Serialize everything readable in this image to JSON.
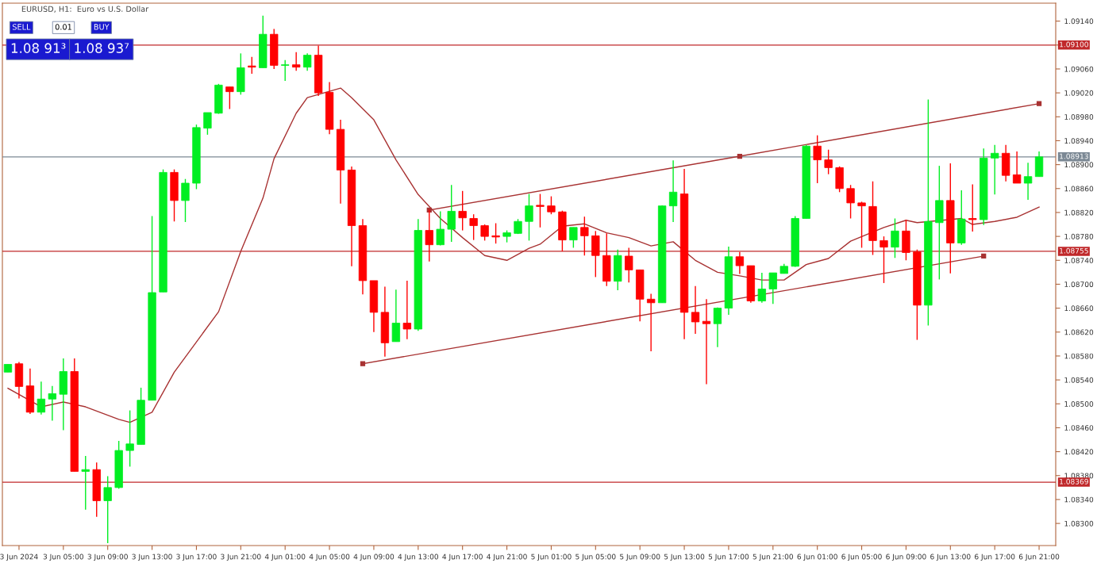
{
  "chart_data": {
    "type": "candlestick",
    "title": "EURUSD, H1:  Euro vs U.S. Dollar",
    "categories": [
      null,
      "3 Jun 2024",
      null,
      null,
      null,
      "3 Jun 05:00",
      null,
      null,
      null,
      "3 Jun 09:00",
      null,
      null,
      null,
      "3 Jun 13:00",
      null,
      null,
      null,
      "3 Jun 17:00",
      null,
      null,
      null,
      "3 Jun 21:00",
      null,
      null,
      null,
      "4 Jun 01:00",
      null,
      null,
      null,
      "4 Jun 05:00",
      null,
      null,
      null,
      "4 Jun 09:00",
      null,
      null,
      null,
      "4 Jun 13:00",
      null,
      null,
      null,
      "4 Jun 17:00",
      null,
      null,
      null,
      "4 Jun 21:00",
      null,
      null,
      null,
      "5 Jun 01:00",
      null,
      null,
      null,
      "5 Jun 05:00",
      null,
      null,
      null,
      "5 Jun 09:00",
      null,
      null,
      null,
      "5 Jun 13:00",
      null,
      null,
      null,
      "5 Jun 17:00",
      null,
      null,
      null,
      "5 Jun 21:00",
      null,
      null,
      null,
      "6 Jun 01:00",
      null,
      null,
      null,
      "6 Jun 05:00",
      null,
      null,
      null,
      "6 Jun 09:00",
      null,
      null,
      null,
      "6 Jun 13:00",
      null,
      null,
      null,
      "6 Jun 17:00",
      null,
      null,
      null,
      "6 Jun 21:00"
    ],
    "ohlc": [
      [
        1.08553,
        1.08566,
        1.08553,
        1.08566
      ],
      [
        1.08567,
        1.0857,
        1.08509,
        1.08529
      ],
      [
        1.0853,
        1.08559,
        1.08483,
        1.08486
      ],
      [
        1.08486,
        1.08537,
        1.08482,
        1.08508
      ],
      [
        1.08508,
        1.0853,
        1.08472,
        1.08517
      ],
      [
        1.08516,
        1.08576,
        1.08456,
        1.08554
      ],
      [
        1.08554,
        1.08576,
        1.08387,
        1.08387
      ],
      [
        1.08387,
        1.08413,
        1.08323,
        1.0839
      ],
      [
        1.0839,
        1.08402,
        1.08311,
        1.08338
      ],
      [
        1.08338,
        1.08379,
        1.08267,
        1.0836
      ],
      [
        1.0836,
        1.08438,
        1.08358,
        1.08422
      ],
      [
        1.08422,
        1.08489,
        1.08395,
        1.08433
      ],
      [
        1.08432,
        1.08527,
        1.08432,
        1.08506
      ],
      [
        1.08506,
        1.08814,
        1.08506,
        1.08686
      ],
      [
        1.08687,
        1.08892,
        1.08687,
        1.08887
      ],
      [
        1.08887,
        1.08892,
        1.08805,
        1.0884
      ],
      [
        1.0884,
        1.08876,
        1.08804,
        1.08869
      ],
      [
        1.08869,
        1.08967,
        1.08859,
        1.08962
      ],
      [
        1.08961,
        1.08987,
        1.0895,
        1.08987
      ],
      [
        1.08986,
        1.09035,
        1.08985,
        1.09033
      ],
      [
        1.0903,
        1.0903,
        1.08993,
        1.09022
      ],
      [
        1.09022,
        1.09086,
        1.09017,
        1.09062
      ],
      [
        1.09065,
        1.0908,
        1.09052,
        1.09063
      ],
      [
        1.09062,
        1.09149,
        1.09062,
        1.09118
      ],
      [
        1.09118,
        1.09127,
        1.0906,
        1.09066
      ],
      [
        1.09066,
        1.09075,
        1.0904,
        1.09067
      ],
      [
        1.09067,
        1.09088,
        1.09057,
        1.09063
      ],
      [
        1.09063,
        1.09086,
        1.09057,
        1.09083
      ],
      [
        1.09083,
        1.09099,
        1.09015,
        1.0902
      ],
      [
        1.09021,
        1.09038,
        1.08951,
        1.08959
      ],
      [
        1.08959,
        1.08975,
        1.08835,
        1.08891
      ],
      [
        1.08891,
        1.08897,
        1.0873,
        1.08798
      ],
      [
        1.08798,
        1.08809,
        1.08683,
        1.08706
      ],
      [
        1.08706,
        1.08706,
        1.0862,
        1.08653
      ],
      [
        1.08653,
        1.08696,
        1.08579,
        1.08602
      ],
      [
        1.08604,
        1.08691,
        1.08604,
        1.08635
      ],
      [
        1.08635,
        1.08706,
        1.08608,
        1.08625
      ],
      [
        1.08625,
        1.08809,
        1.08622,
        1.0879
      ],
      [
        1.0879,
        1.08825,
        1.08738,
        1.08766
      ],
      [
        1.08766,
        1.08822,
        1.08765,
        1.08792
      ],
      [
        1.08792,
        1.08866,
        1.08771,
        1.08822
      ],
      [
        1.08822,
        1.08856,
        1.0879,
        1.08811
      ],
      [
        1.0881,
        1.08817,
        1.08774,
        1.08798
      ],
      [
        1.08798,
        1.088,
        1.08773,
        1.0878
      ],
      [
        1.08781,
        1.08802,
        1.08768,
        1.08779
      ],
      [
        1.0878,
        1.0879,
        1.0877,
        1.08786
      ],
      [
        1.08785,
        1.08809,
        1.08784,
        1.08805
      ],
      [
        1.08805,
        1.08851,
        1.08773,
        1.08831
      ],
      [
        1.08832,
        1.08851,
        1.08795,
        1.0883
      ],
      [
        1.08831,
        1.08847,
        1.08817,
        1.08821
      ],
      [
        1.08821,
        1.08823,
        1.08755,
        1.08774
      ],
      [
        1.08774,
        1.08795,
        1.08761,
        1.08795
      ],
      [
        1.08795,
        1.08813,
        1.08748,
        1.08781
      ],
      [
        1.08781,
        1.08789,
        1.08712,
        1.08748
      ],
      [
        1.08748,
        1.08785,
        1.08697,
        1.08705
      ],
      [
        1.08705,
        1.08758,
        1.0869,
        1.08748
      ],
      [
        1.08747,
        1.08761,
        1.08703,
        1.08724
      ],
      [
        1.08724,
        1.08724,
        1.08638,
        1.08675
      ],
      [
        1.08675,
        1.08684,
        1.08588,
        1.08669
      ],
      [
        1.08669,
        1.08832,
        1.08669,
        1.08831
      ],
      [
        1.08831,
        1.08907,
        1.08804,
        1.08854
      ],
      [
        1.08851,
        1.08893,
        1.08608,
        1.08653
      ],
      [
        1.08653,
        1.08697,
        1.08617,
        1.08637
      ],
      [
        1.08638,
        1.08675,
        1.08533,
        1.08634
      ],
      [
        1.08634,
        1.08661,
        1.08595,
        1.0866
      ],
      [
        1.0866,
        1.08763,
        1.08649,
        1.08746
      ],
      [
        1.08746,
        1.08754,
        1.08717,
        1.08731
      ],
      [
        1.08731,
        1.08731,
        1.08669,
        1.08672
      ],
      [
        1.08672,
        1.08719,
        1.08669,
        1.08692
      ],
      [
        1.08692,
        1.08719,
        1.08667,
        1.08719
      ],
      [
        1.08718,
        1.08734,
        1.08718,
        1.0873
      ],
      [
        1.0873,
        1.08814,
        1.08729,
        1.0881
      ],
      [
        1.0881,
        1.08933,
        1.0881,
        1.08931
      ],
      [
        1.08931,
        1.08949,
        1.08869,
        1.08908
      ],
      [
        1.08908,
        1.08925,
        1.08884,
        1.08895
      ],
      [
        1.08895,
        1.08897,
        1.08854,
        1.0886
      ],
      [
        1.0886,
        1.08866,
        1.0881,
        1.08836
      ],
      [
        1.08836,
        1.08838,
        1.08761,
        1.08831
      ],
      [
        1.0883,
        1.08872,
        1.08749,
        1.08773
      ],
      [
        1.08773,
        1.0878,
        1.08702,
        1.08762
      ],
      [
        1.08762,
        1.0881,
        1.08744,
        1.08789
      ],
      [
        1.08789,
        1.08808,
        1.0874,
        1.08753
      ],
      [
        1.08754,
        1.08758,
        1.08607,
        1.08665
      ],
      [
        1.08665,
        1.09009,
        1.08631,
        1.08805
      ],
      [
        1.08803,
        1.08898,
        1.08708,
        1.0884
      ],
      [
        1.0884,
        1.08902,
        1.08718,
        1.08769
      ],
      [
        1.08769,
        1.08857,
        1.08766,
        1.08809
      ],
      [
        1.0881,
        1.08867,
        1.08788,
        1.08808
      ],
      [
        1.08808,
        1.08927,
        1.08799,
        1.08911
      ],
      [
        1.08911,
        1.08933,
        1.0885,
        1.08919
      ],
      [
        1.08919,
        1.08933,
        1.08872,
        1.08882
      ],
      [
        1.08883,
        1.08922,
        1.08869,
        1.08869
      ],
      [
        1.08869,
        1.08903,
        1.08841,
        1.0888
      ],
      [
        1.0888,
        1.08922,
        1.0888,
        1.08913
      ]
    ],
    "colors": [
      "#00ee22",
      "#ff0000",
      "#ff0000",
      "#00ee22",
      "#00ee22",
      "#00ee22",
      "#ff0000",
      "#00ee22",
      "#ff0000",
      "#00ee22",
      "#00ee22",
      "#00ee22",
      "#00ee22",
      "#00ee22",
      "#00ee22",
      "#ff0000",
      "#00ee22",
      "#00ee22",
      "#00ee22",
      "#00ee22",
      "#ff0000",
      "#00ee22",
      "#ff0000",
      "#00ee22",
      "#ff0000",
      "#00ee22",
      "#ff0000",
      "#00ee22",
      "#ff0000",
      "#ff0000",
      "#ff0000",
      "#ff0000",
      "#ff0000",
      "#ff0000",
      "#ff0000",
      "#00ee22",
      "#ff0000",
      "#00ee22",
      "#ff0000",
      "#00ee22",
      "#00ee22",
      "#ff0000",
      "#ff0000",
      "#ff0000",
      "#ff0000",
      "#00ee22",
      "#00ee22",
      "#00ee22",
      "#ff0000",
      "#ff0000",
      "#ff0000",
      "#00ee22",
      "#ff0000",
      "#ff0000",
      "#ff0000",
      "#00ee22",
      "#ff0000",
      "#ff0000",
      "#ff0000",
      "#00ee22",
      "#00ee22",
      "#ff0000",
      "#ff0000",
      "#ff0000",
      "#00ee22",
      "#00ee22",
      "#ff0000",
      "#ff0000",
      "#00ee22",
      "#00ee22",
      "#00ee22",
      "#00ee22",
      "#00ee22",
      "#ff0000",
      "#ff0000",
      "#ff0000",
      "#ff0000",
      "#ff0000",
      "#ff0000",
      "#ff0000",
      "#00ee22",
      "#ff0000",
      "#ff0000",
      "#00ee22",
      "#00ee22",
      "#ff0000",
      "#00ee22",
      "#ff0000",
      "#00ee22",
      "#00ee22",
      "#ff0000",
      "#ff0000",
      "#00ee22",
      "#00ee22"
    ],
    "series": [
      {
        "type": "line",
        "color": "#a83232",
        "marker": "none",
        "values": [
          1.08526,
          null,
          null,
          1.08495,
          null,
          1.08503,
          null,
          1.08495,
          null,
          null,
          1.08474,
          1.08469,
          null,
          1.08486,
          null,
          1.08553,
          null,
          null,
          null,
          1.08654,
          null,
          1.08755,
          null,
          1.08844,
          1.0891,
          null,
          1.08986,
          1.09012,
          null,
          null,
          1.09028,
          1.09012,
          null,
          1.08975,
          null,
          1.08908,
          null,
          1.0885,
          null,
          1.0881,
          null,
          1.08778,
          null,
          1.08748,
          null,
          1.0874,
          null,
          1.0876,
          1.08767,
          null,
          1.08797,
          null,
          1.08801,
          null,
          1.08786,
          null,
          1.08778,
          null,
          1.08764,
          null,
          1.08771,
          null,
          1.0874,
          null,
          1.0872,
          null,
          1.08714,
          null,
          1.08707,
          null,
          1.08707,
          null,
          1.08733,
          null,
          1.08743,
          null,
          1.08772,
          null,
          null,
          1.08795,
          null,
          1.08807,
          1.08803,
          null,
          null,
          null,
          1.0881,
          1.088,
          null,
          1.08805,
          null,
          1.08812,
          null,
          1.08829
        ]
      },
      {
        "type": "line",
        "color": "#a83232",
        "marker": "square",
        "values": [
          null,
          null,
          null,
          null,
          null,
          null,
          null,
          null,
          null,
          null,
          null,
          null,
          null,
          null,
          null,
          null,
          null,
          null,
          null,
          null,
          null,
          null,
          null,
          null,
          null,
          null,
          null,
          null,
          null,
          null,
          null,
          null,
          null,
          null,
          null,
          null,
          null,
          null,
          1.08824,
          null,
          null,
          null,
          null,
          null,
          null,
          null,
          null,
          null,
          null,
          null,
          null,
          null,
          null,
          null,
          null,
          null,
          null,
          null,
          null,
          null,
          null,
          null,
          null,
          null,
          null,
          null,
          1.08914,
          null,
          null,
          null,
          null,
          null,
          null,
          null,
          null,
          null,
          null,
          null,
          null,
          null,
          null,
          null,
          null,
          null,
          null,
          null,
          null,
          null,
          null,
          null,
          null,
          null,
          null,
          1.09002
        ]
      },
      {
        "type": "line",
        "color": "#a83232",
        "marker": "square",
        "values": [
          null,
          null,
          null,
          null,
          null,
          null,
          null,
          null,
          null,
          null,
          null,
          null,
          null,
          null,
          null,
          null,
          null,
          null,
          null,
          null,
          null,
          null,
          null,
          null,
          null,
          null,
          null,
          null,
          null,
          null,
          null,
          null,
          1.08567,
          null,
          null,
          null,
          null,
          null,
          null,
          null,
          null,
          null,
          null,
          null,
          null,
          null,
          null,
          null,
          null,
          null,
          null,
          null,
          null,
          null,
          null,
          null,
          null,
          null,
          null,
          null,
          null,
          null,
          null,
          null,
          null,
          null,
          null,
          null,
          null,
          null,
          null,
          null,
          null,
          null,
          null,
          null,
          null,
          null,
          null,
          null,
          null,
          null,
          null,
          null,
          null,
          null,
          null,
          null,
          1.08747,
          null,
          null,
          null,
          null,
          null
        ]
      }
    ],
    "ref_lines": [
      {
        "axis": "y",
        "value": 1.091,
        "label": "1.09100",
        "color": "#c0282a"
      },
      {
        "axis": "y",
        "value": 1.08913,
        "label": "1.08913",
        "color": "#7b8894"
      },
      {
        "axis": "y",
        "value": 1.08755,
        "label": "1.08755",
        "color": "#c0282a"
      },
      {
        "axis": "y",
        "value": 1.08369,
        "label": "1.08369",
        "color": "#c0282a"
      }
    ],
    "annotations": [
      "SELL",
      "0.01",
      "BUY",
      "1.08 91³",
      "1.08 93⁷"
    ],
    "ylim": [
      1.08263,
      1.0917
    ],
    "yticks": [
      {
        "value": 1.083,
        "label": "1.08300"
      },
      {
        "value": 1.0834,
        "label": "1.08340"
      },
      {
        "value": 1.0838,
        "label": "1.08380"
      },
      {
        "value": 1.0842,
        "label": "1.08420"
      },
      {
        "value": 1.0846,
        "label": "1.08460"
      },
      {
        "value": 1.085,
        "label": "1.08500"
      },
      {
        "value": 1.0854,
        "label": "1.08540"
      },
      {
        "value": 1.0858,
        "label": "1.08580"
      },
      {
        "value": 1.0862,
        "label": "1.08620"
      },
      {
        "value": 1.0866,
        "label": "1.08660"
      },
      {
        "value": 1.087,
        "label": "1.08700"
      },
      {
        "value": 1.0874,
        "label": "1.08740"
      },
      {
        "value": 1.0878,
        "label": "1.08780"
      },
      {
        "value": 1.0882,
        "label": "1.08820"
      },
      {
        "value": 1.0886,
        "label": "1.08860"
      },
      {
        "value": 1.089,
        "label": "1.08900"
      },
      {
        "value": 1.0894,
        "label": "1.08940"
      },
      {
        "value": 1.0898,
        "label": "1.08980"
      },
      {
        "value": 1.0902,
        "label": "1.09020"
      },
      {
        "value": 1.0906,
        "label": "1.09060"
      },
      {
        "value": 1.091,
        "label": null
      },
      {
        "value": 1.0914,
        "label": "1.09140"
      }
    ],
    "grid": false
  }
}
